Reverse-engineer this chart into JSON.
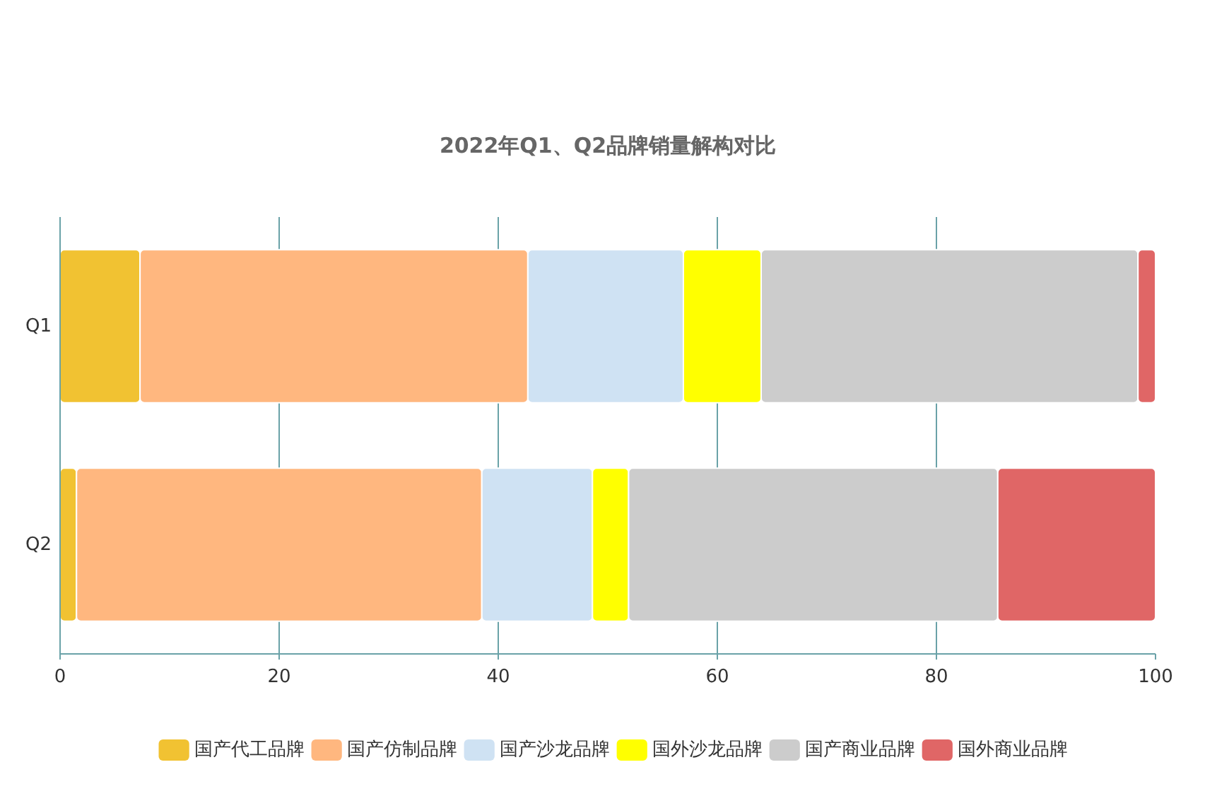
{
  "chart_data": {
    "type": "bar",
    "orientation": "horizontal",
    "stacked": true,
    "title": "2022年Q1、Q2品牌销量解构对比",
    "categories": [
      "Q1",
      "Q2"
    ],
    "series": [
      {
        "name": "国产代工品牌",
        "color": "#f1c232",
        "values": [
          7.3,
          1.5
        ]
      },
      {
        "name": "国产仿制品牌",
        "color": "#ffb77f",
        "values": [
          35.4,
          37.0
        ]
      },
      {
        "name": "国产沙龙品牌",
        "color": "#cfe2f3",
        "values": [
          14.2,
          10.1
        ]
      },
      {
        "name": "国外沙龙品牌",
        "color": "#ffff00",
        "values": [
          7.1,
          3.3
        ]
      },
      {
        "name": "国产商业品牌",
        "color": "#cccccc",
        "values": [
          34.4,
          33.7
        ]
      },
      {
        "name": "国外商业品牌",
        "color": "#e06666",
        "values": [
          1.6,
          14.4
        ]
      }
    ],
    "xlim": [
      0,
      100
    ],
    "xticks": [
      0,
      20,
      40,
      60,
      80,
      100
    ],
    "grid": "x",
    "legend": "bottom"
  }
}
